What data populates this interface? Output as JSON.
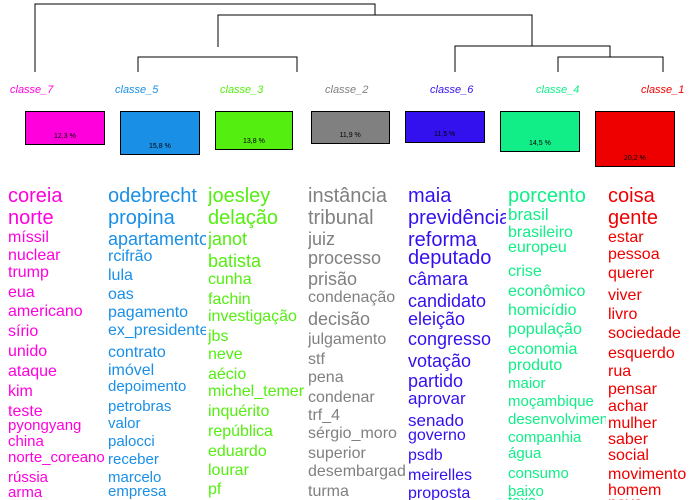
{
  "classes": [
    {
      "label": "classe_7",
      "percent": "12,3 %",
      "color": "#ff00dd",
      "words": [
        "coreia",
        "norte",
        "míssil",
        "nuclear",
        "trump",
        "eua",
        "americano",
        "sírio",
        "unido",
        "ataque",
        "kim",
        "teste",
        "pyongyang",
        "china",
        "norte_coreano",
        "rússia",
        "arma"
      ]
    },
    {
      "label": "classe_5",
      "percent": "15,8 %",
      "color": "#1a8fe6",
      "words": [
        "odebrecht",
        "propina",
        "apartamento",
        "rcifrão",
        "lula",
        "oas",
        "pagamento",
        "ex_presidente",
        "contrato",
        "imóvel",
        "depoimento",
        "petrobras",
        "valor",
        "palocci",
        "receber",
        "marcelo",
        "empresa"
      ]
    },
    {
      "label": "classe_3",
      "percent": "13,8 %",
      "color": "#55ee11",
      "words": [
        "joesley",
        "delação",
        "janot",
        "batista",
        "cunha",
        "fachin",
        "investigação",
        "jbs",
        "neve",
        "aécio",
        "michel_temer",
        "inquérito",
        "república",
        "eduardo",
        "lourar",
        "pf"
      ]
    },
    {
      "label": "classe_2",
      "percent": "11,9 %",
      "color": "#808080",
      "words": [
        "instância",
        "tribunal",
        "juiz",
        "processo",
        "prisão",
        "condenação",
        "decisão",
        "julgamento",
        "stf",
        "pena",
        "condenar",
        "trf_4",
        "sérgio_moro",
        "superior",
        "desembargador",
        "turma"
      ]
    },
    {
      "label": "classe_6",
      "percent": "11,5 %",
      "color": "#3311ee",
      "words": [
        "maia",
        "previdência",
        "reforma",
        "deputado",
        "câmara",
        "candidato",
        "eleição",
        "congresso",
        "votação",
        "partido",
        "aprovar",
        "senado",
        "governo",
        "psdb",
        "meirelles",
        "proposta"
      ]
    },
    {
      "label": "classe_4",
      "percent": "14,5 %",
      "color": "#11ee88",
      "words": [
        "porcento",
        "brasil",
        "brasileiro",
        "europeu",
        "crise",
        "econômico",
        "homicídio",
        "população",
        "economia",
        "produto",
        "maior",
        "moçambique",
        "desenvolvimento",
        "companhia",
        "água",
        "consumo",
        "baixo",
        "taxa"
      ]
    },
    {
      "label": "classe_1",
      "percent": "20,2 %",
      "color": "#ee0000",
      "words": [
        "coisa",
        "gente",
        "estar",
        "pessoa",
        "querer",
        "viver",
        "livro",
        "sociedade",
        "esquerdo",
        "rua",
        "pensar",
        "achar",
        "mulher",
        "saber",
        "social",
        "movimento",
        "homem",
        "nova"
      ]
    }
  ]
}
